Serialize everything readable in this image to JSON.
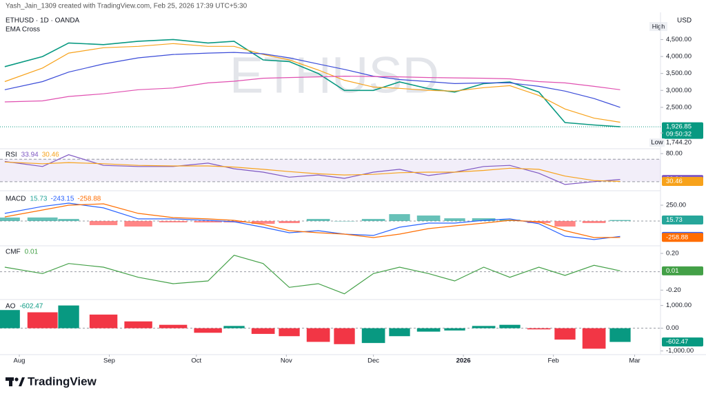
{
  "header": "Yash_Jain_1309 created with TradingView.com, Feb 25, 2026 17:39 UTC+5:30",
  "footer": "TradingView",
  "watermark": "ETHUSD",
  "currency": "USD",
  "high_text": "High",
  "chart_data": [
    {
      "type": "line",
      "title": "ETHUSD · 1D · OANDA",
      "subtitle": "EMA Cross",
      "x": [
        -5,
        8,
        17,
        29,
        41,
        53,
        65,
        74,
        84,
        93,
        103,
        112,
        122,
        131,
        141,
        150,
        160,
        169,
        179,
        188,
        198,
        207
      ],
      "ylim": [
        1360,
        5220
      ],
      "yticks": [
        {
          "value": 4500,
          "label": "4,500.00"
        },
        {
          "value": 4000,
          "label": "4,000.00"
        },
        {
          "value": 3500,
          "label": "3,500.00"
        },
        {
          "value": 3000,
          "label": "3,000.00"
        },
        {
          "value": 2500,
          "label": "2,500.00"
        }
      ],
      "countdown": "09:50:32",
      "low_text": "Low",
      "low": {
        "value": 1744.2,
        "label": "1,744.20"
      },
      "series": [
        {
          "color": "#089981",
          "last_value": true,
          "values": [
            3700,
            4000,
            4400,
            4350,
            4450,
            4500,
            4400,
            4450,
            3900,
            3850,
            3500,
            3000,
            3000,
            3250,
            3050,
            2950,
            3200,
            3250,
            2950,
            2050,
            1980,
            1926.85
          ],
          "value_labels": [
            null,
            null,
            null,
            null,
            null,
            null,
            null,
            null,
            null,
            null,
            null,
            null,
            null,
            null,
            null,
            null,
            null,
            null,
            null,
            null,
            null,
            "1,926.85"
          ]
        },
        {
          "color": "#f7a21b",
          "values": [
            3260,
            3660,
            4100,
            4260,
            4300,
            4380,
            4300,
            4300,
            4060,
            3900,
            3600,
            3300,
            3100,
            3060,
            3000,
            2980,
            3080,
            3140,
            2850,
            2450,
            2180,
            2060
          ]
        },
        {
          "color": "#3a4bd8",
          "values": [
            3020,
            3260,
            3540,
            3780,
            3960,
            4060,
            4100,
            4120,
            4080,
            3960,
            3780,
            3620,
            3420,
            3320,
            3260,
            3200,
            3220,
            3220,
            3120,
            2980,
            2760,
            2500
          ]
        },
        {
          "color": "#e04fb0",
          "values": [
            2660,
            2690,
            2820,
            2900,
            3020,
            3070,
            3220,
            3270,
            3360,
            3380,
            3400,
            3420,
            3410,
            3400,
            3380,
            3370,
            3360,
            3340,
            3260,
            3220,
            3120,
            3020
          ]
        }
      ]
    },
    {
      "type": "line",
      "title": "RSI",
      "x": [
        -5,
        8,
        17,
        29,
        41,
        53,
        65,
        74,
        84,
        93,
        103,
        112,
        122,
        131,
        141,
        150,
        160,
        169,
        179,
        188,
        198,
        207
      ],
      "ylim": [
        20,
        85
      ],
      "yticks": [
        {
          "value": 80,
          "label": "80.00"
        }
      ],
      "band": [
        30,
        70
      ],
      "series": [
        {
          "color": "#7e57c2",
          "last_value": true,
          "values": [
            66,
            57,
            78,
            59,
            57,
            57,
            63,
            53,
            47,
            38,
            42,
            36,
            47,
            52,
            41,
            47,
            57,
            59,
            45,
            25,
            30,
            33.94
          ]
        },
        {
          "color": "#f7a21b",
          "last_value": true,
          "values": [
            65,
            62,
            64,
            62,
            59,
            58,
            58,
            56,
            52,
            48,
            44,
            42,
            43,
            46,
            47,
            47,
            50,
            54,
            52,
            40,
            32,
            30.46
          ]
        }
      ]
    },
    {
      "type": "line",
      "title": "MACD",
      "x": [
        -5,
        8,
        17,
        29,
        41,
        53,
        65,
        74,
        84,
        93,
        103,
        112,
        122,
        131,
        141,
        150,
        160,
        169,
        179,
        188,
        198,
        207
      ],
      "ylim": [
        -370,
        413
      ],
      "yticks": [
        {
          "value": 250,
          "label": "250.00"
        }
      ],
      "series": [
        {
          "type": "bar",
          "color": "#26a69a",
          "down_color": "#ff5252",
          "color_by": "sign",
          "last_value": true,
          "values": [
            55,
            56,
            33,
            -65,
            -87,
            -21,
            -22,
            -22,
            -44,
            -33,
            33,
            0,
            33,
            109,
            87,
            43,
            44,
            22,
            -32,
            -87,
            -32,
            15.73
          ]
        },
        {
          "color": "#2962ff",
          "last_value": true,
          "values": [
            120,
            230,
            283,
            207,
            33,
            33,
            11,
            -11,
            -98,
            -185,
            -152,
            -207,
            -228,
            -98,
            -33,
            -33,
            11,
            33,
            -43,
            -239,
            -293,
            -243.15
          ]
        },
        {
          "color": "#ff6d00",
          "last_value": true,
          "values": [
            65,
            174,
            250,
            272,
            120,
            54,
            33,
            11,
            -54,
            -152,
            -185,
            -207,
            -261,
            -207,
            -120,
            -76,
            -33,
            11,
            -11,
            -152,
            -261,
            -258.88
          ]
        }
      ]
    },
    {
      "type": "line",
      "title": "CMF",
      "x": [
        -5,
        8,
        17,
        29,
        41,
        53,
        65,
        74,
        84,
        93,
        103,
        112,
        122,
        131,
        141,
        150,
        160,
        169,
        179,
        188,
        198,
        207
      ],
      "ylim": [
        -0.28,
        0.26
      ],
      "yticks": [
        {
          "value": 0.2,
          "label": "0.20"
        },
        {
          "value": -0.2,
          "label": "-0.20"
        }
      ],
      "series": [
        {
          "color": "#43a047",
          "last_value": true,
          "values": [
            0.05,
            -0.02,
            0.09,
            0.05,
            -0.06,
            -0.13,
            -0.1,
            0.18,
            0.09,
            -0.17,
            -0.13,
            -0.24,
            -0.02,
            0.05,
            -0.02,
            -0.1,
            0.05,
            -0.06,
            0.05,
            -0.04,
            0.07,
            0.01
          ]
        }
      ]
    },
    {
      "type": "bar",
      "title": "AO",
      "x": [
        -5,
        8,
        17,
        29,
        41,
        53,
        65,
        74,
        84,
        93,
        103,
        112,
        122,
        131,
        141,
        150,
        160,
        169,
        179,
        188,
        198,
        207
      ],
      "xlim": [
        -6.65,
        220.9
      ],
      "xticks": [
        {
          "value": 0,
          "label": "Aug"
        },
        {
          "value": 31,
          "label": "Sep"
        },
        {
          "value": 61,
          "label": "Oct"
        },
        {
          "value": 92,
          "label": "Nov"
        },
        {
          "value": 122,
          "label": "Dec"
        },
        {
          "value": 153,
          "label": "2026"
        },
        {
          "value": 184,
          "label": "Feb"
        },
        {
          "value": 212,
          "label": "Mar"
        }
      ],
      "ylim": [
        -1100,
        1140
      ],
      "yticks": [
        {
          "value": 1000,
          "label": "1,000.00"
        },
        {
          "value": 0,
          "label": "0.00"
        },
        {
          "value": -1000,
          "label": "-1,000.00"
        }
      ],
      "series": [
        {
          "type": "bar",
          "color": "#089981",
          "down_color": "#f23645",
          "color_by": "change",
          "last_value": true,
          "values": [
            800,
            700,
            1000,
            600,
            300,
            150,
            -200,
            100,
            -250,
            -350,
            -600,
            -700,
            -650,
            -350,
            -150,
            -100,
            100,
            150,
            -50,
            -500,
            -900,
            -602.47
          ]
        }
      ]
    }
  ]
}
